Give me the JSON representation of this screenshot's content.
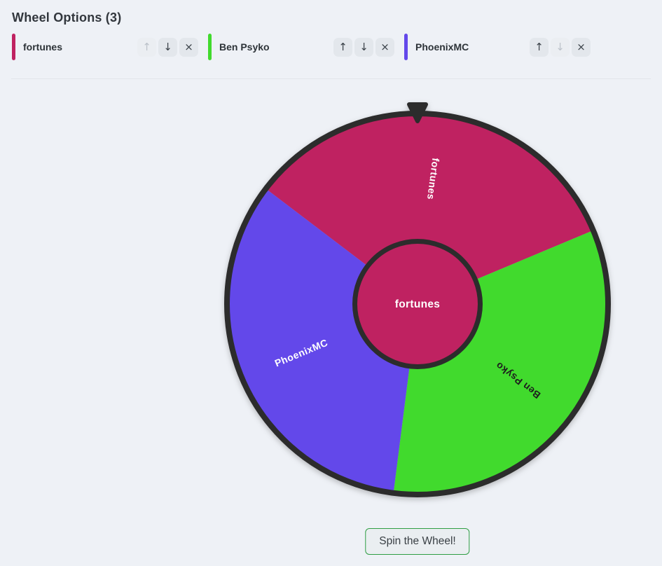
{
  "header": {
    "title": "Wheel Options (3)"
  },
  "option_controls": {
    "up_icon": "↑",
    "down_icon": "↓",
    "remove_icon": "×"
  },
  "options": [
    {
      "label": "fortunes",
      "color": "#bf2261",
      "up_disabled": true,
      "down_disabled": false
    },
    {
      "label": "Ben Psyko",
      "color": "#41da2d",
      "up_disabled": false,
      "down_disabled": false
    },
    {
      "label": "PhoenixMC",
      "color": "#6348ea",
      "up_disabled": false,
      "down_disabled": true
    }
  ],
  "wheel": {
    "center_label": "fortunes",
    "start_angle_deg": -52.75,
    "segment_angle_deg": 120,
    "ring_color": "#2c2c2c",
    "pointer_color": "#2c2c2c",
    "center_fill": "#bf2261",
    "segments": [
      {
        "label": "fortunes",
        "color": "#bf2261",
        "text_color": "#ffffff"
      },
      {
        "label": "Ben Psyko",
        "color": "#41da2d",
        "text_color": "#1d1d1d"
      },
      {
        "label": "PhoenixMC",
        "color": "#6348ea",
        "text_color": "#ffffff"
      }
    ]
  },
  "spin_button": {
    "label": "Spin the Wheel!",
    "border_color": "#2f9e44"
  },
  "colors": {
    "background": "#eef1f6",
    "divider": "#e2e5ea",
    "button_bg": "#e3e7ec"
  }
}
